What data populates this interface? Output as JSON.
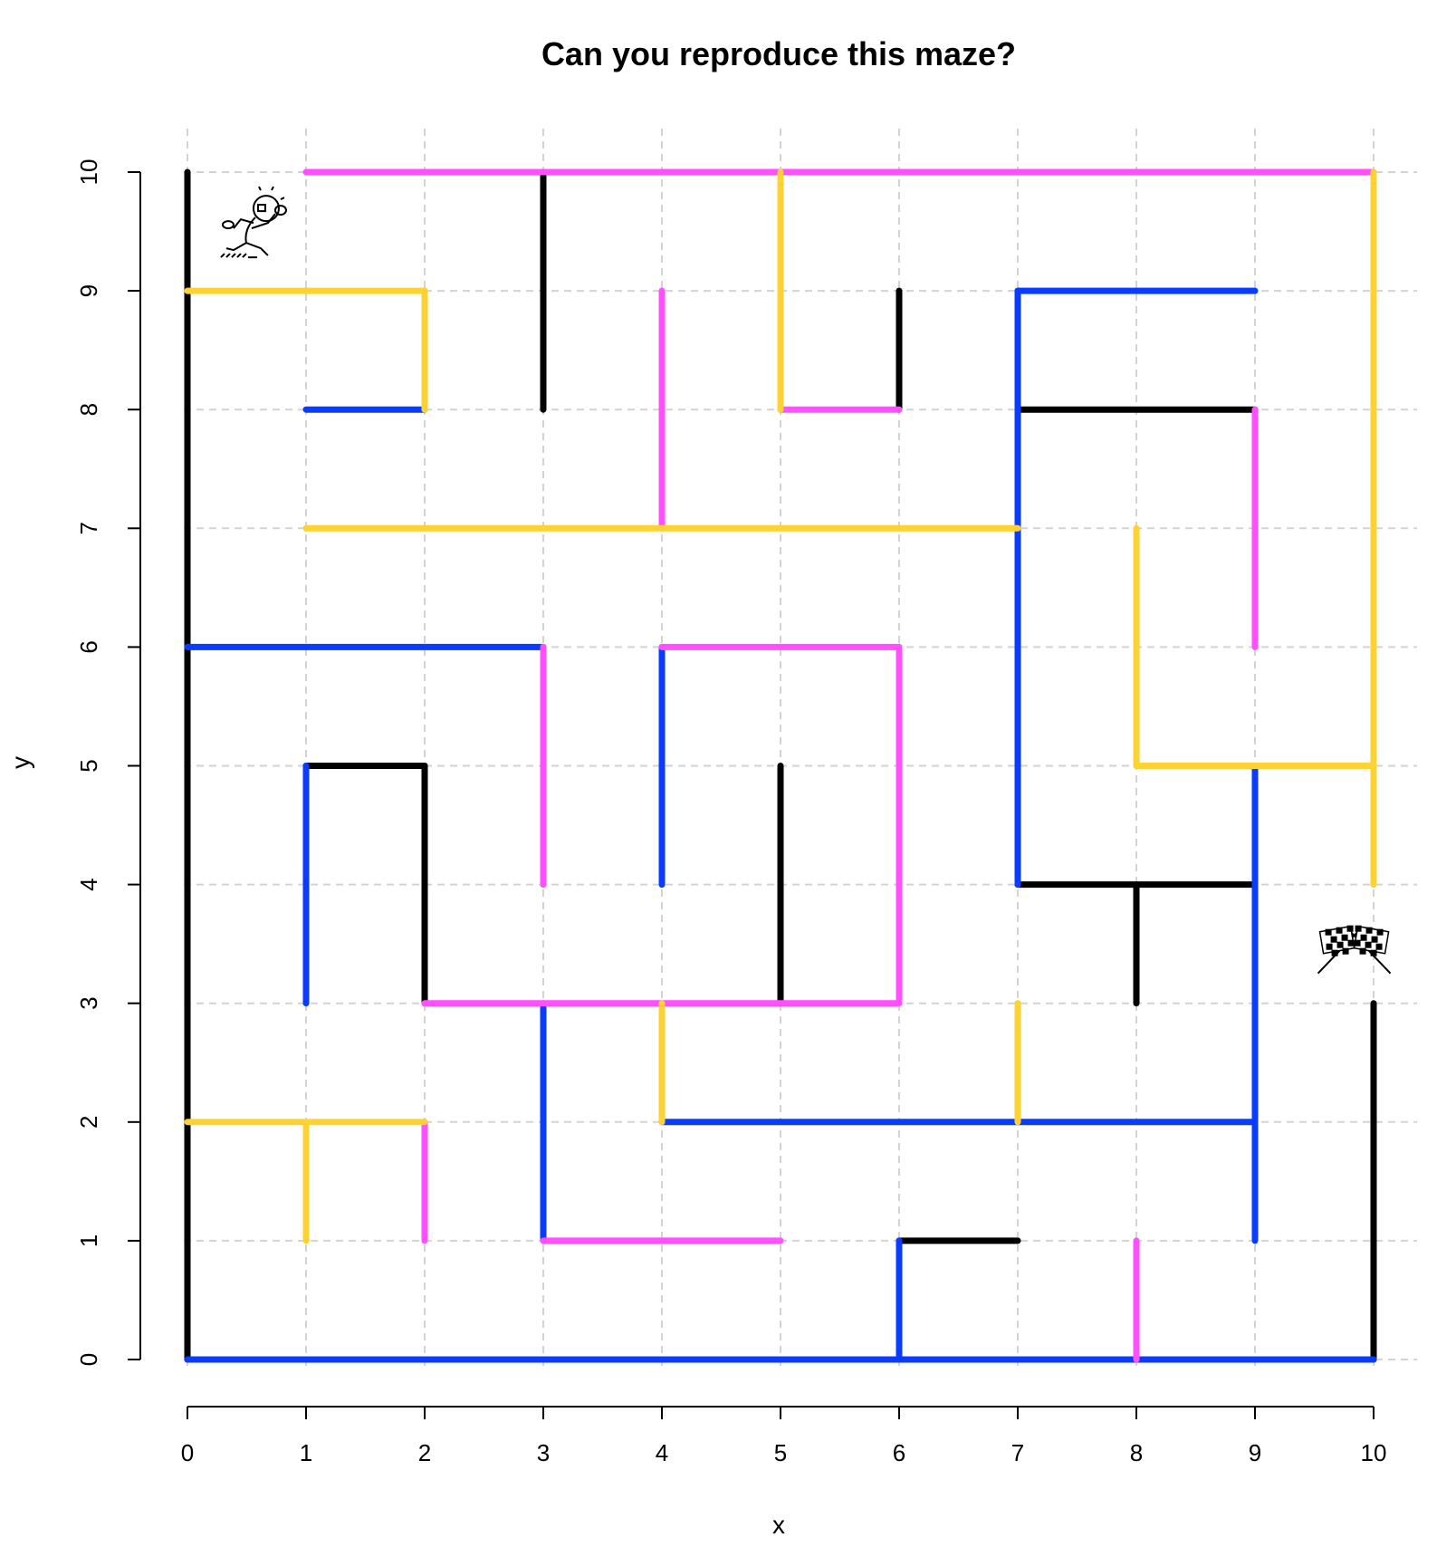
{
  "chart_data": {
    "type": "line",
    "title": "Can you reproduce this maze?",
    "xlabel": "x",
    "ylabel": "y",
    "xlim": [
      0,
      10
    ],
    "ylim": [
      0,
      10
    ],
    "xticks": [
      0,
      1,
      2,
      3,
      4,
      5,
      6,
      7,
      8,
      9,
      10
    ],
    "yticks": [
      0,
      1,
      2,
      3,
      4,
      5,
      6,
      7,
      8,
      9,
      10
    ],
    "grid": true,
    "colors": {
      "black": "#000000",
      "blue": "#0a3cff",
      "magenta": "#ff4fff",
      "yellow": "#ffd233",
      "grid": "#d3d3d3"
    },
    "start_marker": {
      "label": "runner-icon",
      "x": 0.45,
      "y": 9.45
    },
    "finish_marker": {
      "label": "checkered-flags-icon",
      "x": 9.47,
      "y": 3.45
    },
    "segments": [
      {
        "color": "black",
        "x": [
          0,
          0
        ],
        "y": [
          0,
          10
        ]
      },
      {
        "color": "black",
        "x": [
          3,
          3
        ],
        "y": [
          8,
          10
        ]
      },
      {
        "color": "black",
        "x": [
          6,
          6
        ],
        "y": [
          8,
          9
        ]
      },
      {
        "color": "black",
        "x": [
          7,
          9
        ],
        "y": [
          8,
          8
        ]
      },
      {
        "color": "black",
        "x": [
          1,
          2
        ],
        "y": [
          5,
          5
        ]
      },
      {
        "color": "black",
        "x": [
          2,
          2
        ],
        "y": [
          3,
          5
        ]
      },
      {
        "color": "black",
        "x": [
          5,
          5
        ],
        "y": [
          3,
          5
        ]
      },
      {
        "color": "black",
        "x": [
          7,
          9
        ],
        "y": [
          4,
          4
        ]
      },
      {
        "color": "black",
        "x": [
          8,
          8
        ],
        "y": [
          3,
          4
        ]
      },
      {
        "color": "black",
        "x": [
          10,
          10
        ],
        "y": [
          0,
          3
        ]
      },
      {
        "color": "black",
        "x": [
          6,
          7
        ],
        "y": [
          1,
          1
        ]
      },
      {
        "color": "blue",
        "x": [
          0,
          10
        ],
        "y": [
          0,
          0
        ]
      },
      {
        "color": "blue",
        "x": [
          1,
          2
        ],
        "y": [
          8,
          8
        ]
      },
      {
        "color": "blue",
        "x": [
          7,
          9
        ],
        "y": [
          9,
          9
        ]
      },
      {
        "color": "blue",
        "x": [
          7,
          7
        ],
        "y": [
          4,
          9
        ]
      },
      {
        "color": "blue",
        "x": [
          0,
          3
        ],
        "y": [
          6,
          6
        ]
      },
      {
        "color": "blue",
        "x": [
          4,
          4
        ],
        "y": [
          4,
          6
        ]
      },
      {
        "color": "blue",
        "x": [
          1,
          1
        ],
        "y": [
          3,
          5
        ]
      },
      {
        "color": "blue",
        "x": [
          9,
          9
        ],
        "y": [
          1,
          5
        ]
      },
      {
        "color": "blue",
        "x": [
          3,
          3
        ],
        "y": [
          1,
          3
        ]
      },
      {
        "color": "blue",
        "x": [
          4,
          9
        ],
        "y": [
          2,
          2
        ]
      },
      {
        "color": "blue",
        "x": [
          6,
          6
        ],
        "y": [
          0,
          1
        ]
      },
      {
        "color": "magenta",
        "x": [
          1,
          10
        ],
        "y": [
          10,
          10
        ]
      },
      {
        "color": "magenta",
        "x": [
          4,
          4
        ],
        "y": [
          7,
          9
        ]
      },
      {
        "color": "magenta",
        "x": [
          5,
          6
        ],
        "y": [
          8,
          8
        ]
      },
      {
        "color": "magenta",
        "x": [
          9,
          9
        ],
        "y": [
          6,
          8
        ]
      },
      {
        "color": "magenta",
        "x": [
          3,
          3
        ],
        "y": [
          4,
          6
        ]
      },
      {
        "color": "magenta",
        "x": [
          4,
          6
        ],
        "y": [
          6,
          6
        ]
      },
      {
        "color": "magenta",
        "x": [
          6,
          6
        ],
        "y": [
          3,
          6
        ]
      },
      {
        "color": "magenta",
        "x": [
          2,
          6
        ],
        "y": [
          3,
          3
        ]
      },
      {
        "color": "magenta",
        "x": [
          2,
          2
        ],
        "y": [
          1,
          2
        ]
      },
      {
        "color": "magenta",
        "x": [
          3,
          5
        ],
        "y": [
          1,
          1
        ]
      },
      {
        "color": "magenta",
        "x": [
          8,
          8
        ],
        "y": [
          0,
          1
        ]
      },
      {
        "color": "yellow",
        "x": [
          0,
          2
        ],
        "y": [
          9,
          9
        ]
      },
      {
        "color": "yellow",
        "x": [
          2,
          2
        ],
        "y": [
          8,
          9
        ]
      },
      {
        "color": "yellow",
        "x": [
          5,
          5
        ],
        "y": [
          8,
          10
        ]
      },
      {
        "color": "yellow",
        "x": [
          10,
          10
        ],
        "y": [
          4,
          10
        ]
      },
      {
        "color": "yellow",
        "x": [
          1,
          7
        ],
        "y": [
          7,
          7
        ]
      },
      {
        "color": "yellow",
        "x": [
          8,
          8
        ],
        "y": [
          5,
          7
        ]
      },
      {
        "color": "yellow",
        "x": [
          8,
          10
        ],
        "y": [
          5,
          5
        ]
      },
      {
        "color": "yellow",
        "x": [
          0,
          2
        ],
        "y": [
          2,
          2
        ]
      },
      {
        "color": "yellow",
        "x": [
          1,
          1
        ],
        "y": [
          1,
          2
        ]
      },
      {
        "color": "yellow",
        "x": [
          4,
          4
        ],
        "y": [
          2,
          3
        ]
      },
      {
        "color": "yellow",
        "x": [
          7,
          7
        ],
        "y": [
          2,
          3
        ]
      }
    ]
  }
}
